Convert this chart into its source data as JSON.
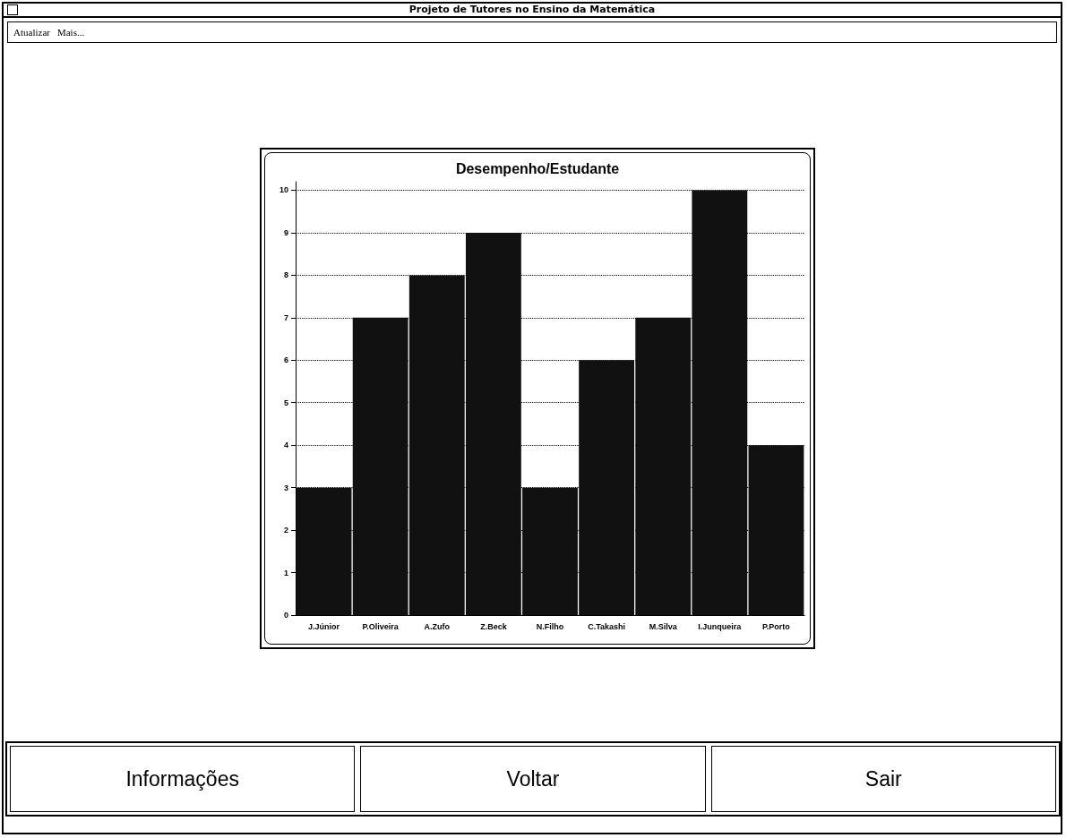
{
  "chart_data": {
    "type": "bar",
    "title": "Desempenho/Estudante",
    "categories": [
      "J.Júnior",
      "P.Oliveira",
      "A.Zufo",
      "Z.Beck",
      "N.Filho",
      "C.Takashi",
      "M.Silva",
      "I.Junqueira",
      "P.Porto"
    ],
    "values": [
      3,
      7,
      8,
      9,
      3,
      6,
      7,
      10,
      4
    ],
    "color": "#111111",
    "ylim": [
      0,
      10.2
    ],
    "yticks": [
      0,
      1,
      2,
      3,
      4,
      5,
      6,
      7,
      8,
      9,
      10
    ],
    "grid": "y",
    "line_style": "dotted",
    "annotations": [
      "Projeto de Tutores no Ensino da Matemática",
      "Atualizar",
      "Mais...",
      "Informações",
      "Voltar",
      "Sair"
    ]
  }
}
